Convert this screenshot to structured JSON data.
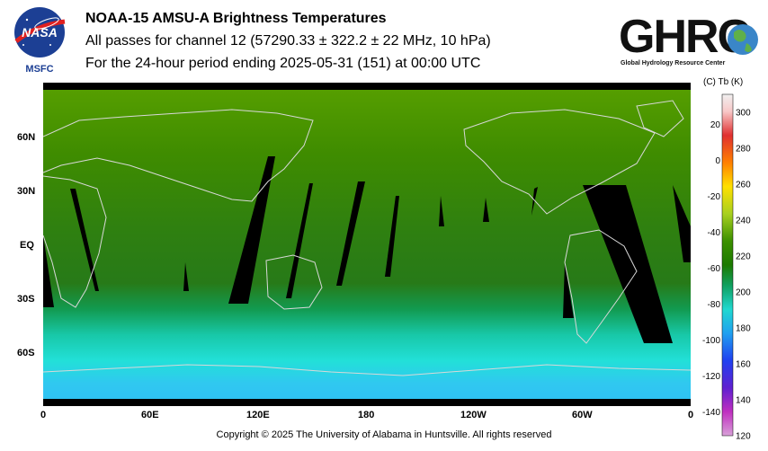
{
  "header": {
    "title": "NOAA-15 AMSU-A Brightness Temperatures",
    "subtitle": "All passes for channel 12 (57290.33 ± 322.2 ± 22 MHz, 10 hPa)",
    "period": "For the 24-hour period ending 2025-05-31 (151) at 00:00 UTC"
  },
  "logos": {
    "nasa_text": "NASA",
    "nasa_sub": "MSFC",
    "ghrc_text": "GHRC",
    "ghrc_sub": "Global Hydrology Resource Center"
  },
  "map": {
    "projection": "equirectangular",
    "lat_labels": [
      "60N",
      "30N",
      "EQ",
      "30S",
      "60S"
    ],
    "lon_labels": [
      "0",
      "60E",
      "120E",
      "180",
      "120W",
      "60W",
      "0"
    ],
    "colors": {
      "north_high_lat": "#4a9400",
      "mid_lat": "#3c8a00",
      "tropics": "#2f7f10",
      "south_mid": "#14a860",
      "south_high": "#1fd8c8",
      "antarctic": "#2ec8f0",
      "coastline": "#d8d8d8",
      "gap": "#000000"
    }
  },
  "colorbar": {
    "units_label": "(C)  Tb  (K)",
    "celsius_ticks": [
      "20",
      "0",
      "-20",
      "-40",
      "-60",
      "-80",
      "-100",
      "-120",
      "-140"
    ],
    "kelvin_ticks": [
      "300",
      "280",
      "260",
      "240",
      "220",
      "200",
      "180",
      "160",
      "140",
      "120"
    ],
    "range_k": [
      120,
      310
    ]
  },
  "footer": {
    "copyright": "Copyright © 2025 The University of Alabama in Huntsville.  All rights reserved"
  }
}
